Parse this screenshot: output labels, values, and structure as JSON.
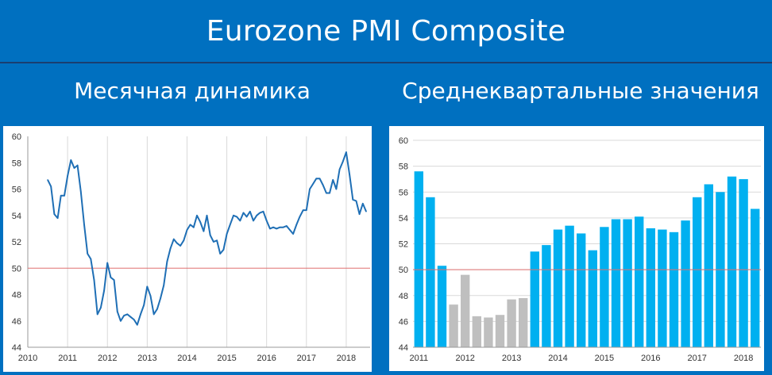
{
  "header": {
    "title": "Eurozone PMI Composite",
    "left_subtitle": "Месячная динамика",
    "right_subtitle": "Среднеквартальные значения"
  },
  "colors": {
    "background": "#0070c0",
    "line": "#1f6fb5",
    "bar_blue": "#00b0f0",
    "bar_gray": "#bfbfbf",
    "reference_line": "#e07070",
    "grid": "#d9d9d9"
  },
  "chart_data": [
    {
      "type": "line",
      "title": "Месячная динамика",
      "xlabel": "",
      "ylabel": "",
      "xlim": [
        2010,
        2018.6
      ],
      "ylim": [
        44,
        60
      ],
      "y_ticks": [
        44,
        46,
        48,
        50,
        52,
        54,
        56,
        58,
        60
      ],
      "x_ticks": [
        "2010",
        "2011",
        "2012",
        "2013",
        "2014",
        "2015",
        "2016",
        "2017",
        "2018"
      ],
      "vertical_grid": true,
      "reference_line": 50,
      "series": [
        {
          "x": [
            2010.5,
            2010.583,
            2010.667,
            2010.75,
            2010.833,
            2010.917,
            2011.0,
            2011.083,
            2011.167,
            2011.25,
            2011.333,
            2011.417,
            2011.5,
            2011.583,
            2011.667,
            2011.75,
            2011.833,
            2011.917,
            2012.0,
            2012.083,
            2012.167,
            2012.25,
            2012.333,
            2012.417,
            2012.5,
            2012.583,
            2012.667,
            2012.75,
            2012.833,
            2012.917,
            2013.0,
            2013.083,
            2013.167,
            2013.25,
            2013.333,
            2013.417,
            2013.5,
            2013.583,
            2013.667,
            2013.75,
            2013.833,
            2013.917,
            2014.0,
            2014.083,
            2014.167,
            2014.25,
            2014.333,
            2014.417,
            2014.5,
            2014.583,
            2014.667,
            2014.75,
            2014.833,
            2014.917,
            2015.0,
            2015.083,
            2015.167,
            2015.25,
            2015.333,
            2015.417,
            2015.5,
            2015.583,
            2015.667,
            2015.75,
            2015.833,
            2015.917,
            2016.0,
            2016.083,
            2016.167,
            2016.25,
            2016.333,
            2016.417,
            2016.5,
            2016.583,
            2016.667,
            2016.75,
            2016.833,
            2016.917,
            2017.0,
            2017.083,
            2017.167,
            2017.25,
            2017.333,
            2017.417,
            2017.5,
            2017.583,
            2017.667,
            2017.75,
            2017.833,
            2017.917,
            2018.0,
            2018.083,
            2018.167,
            2018.25,
            2018.333,
            2018.417,
            2018.5
          ],
          "values": [
            56.7,
            56.2,
            54.1,
            53.8,
            55.5,
            55.5,
            57.0,
            58.2,
            57.6,
            57.8,
            55.8,
            53.3,
            51.1,
            50.7,
            49.1,
            46.5,
            47.0,
            48.3,
            50.4,
            49.3,
            49.1,
            46.7,
            46.0,
            46.4,
            46.5,
            46.3,
            46.1,
            45.7,
            46.5,
            47.2,
            48.6,
            47.9,
            46.5,
            46.9,
            47.7,
            48.7,
            50.5,
            51.5,
            52.2,
            51.9,
            51.7,
            52.1,
            52.9,
            53.3,
            53.1,
            54.0,
            53.5,
            52.8,
            54.0,
            52.5,
            52.0,
            52.1,
            51.1,
            51.4,
            52.6,
            53.3,
            54.0,
            53.9,
            53.6,
            54.2,
            53.9,
            54.3,
            53.6,
            54.0,
            54.2,
            54.3,
            53.6,
            53.0,
            53.1,
            53.0,
            53.1,
            53.1,
            53.2,
            52.9,
            52.6,
            53.3,
            53.9,
            54.4,
            54.4,
            56.0,
            56.4,
            56.8,
            56.8,
            56.3,
            55.7,
            55.7,
            56.7,
            56.0,
            57.5,
            58.1,
            58.8,
            57.1,
            55.2,
            55.1,
            54.1,
            54.9,
            54.3
          ]
        }
      ]
    },
    {
      "type": "bar",
      "title": "Среднеквартальные значения",
      "xlabel": "",
      "ylabel": "",
      "ylim": [
        44,
        60
      ],
      "y_ticks": [
        44,
        46,
        48,
        50,
        52,
        54,
        56,
        58,
        60
      ],
      "x_ticks": [
        "2011",
        "2012",
        "2013",
        "2014",
        "2015",
        "2016",
        "2017",
        "2018"
      ],
      "reference_line": 50,
      "categories": [
        "2011 Q1",
        "2011 Q2",
        "2011 Q3",
        "2011 Q4",
        "2012 Q1",
        "2012 Q2",
        "2012 Q3",
        "2012 Q4",
        "2013 Q1",
        "2013 Q2",
        "2013 Q3",
        "2013 Q4",
        "2014 Q1",
        "2014 Q2",
        "2014 Q3",
        "2014 Q4",
        "2015 Q1",
        "2015 Q2",
        "2015 Q3",
        "2015 Q4",
        "2016 Q1",
        "2016 Q2",
        "2016 Q3",
        "2016 Q4",
        "2017 Q1",
        "2017 Q2",
        "2017 Q3",
        "2017 Q4",
        "2018 Q1",
        "2018 Q2"
      ],
      "values": [
        57.6,
        55.6,
        50.3,
        47.3,
        49.6,
        46.4,
        46.3,
        46.5,
        47.7,
        47.8,
        51.4,
        51.9,
        53.1,
        53.4,
        52.8,
        51.5,
        53.3,
        53.9,
        53.9,
        54.1,
        53.2,
        53.1,
        52.9,
        53.8,
        55.6,
        56.6,
        56.0,
        57.2,
        57.0,
        54.7
      ],
      "bar_colors": [
        "blue",
        "blue",
        "blue",
        "gray",
        "gray",
        "gray",
        "gray",
        "gray",
        "gray",
        "gray",
        "blue",
        "blue",
        "blue",
        "blue",
        "blue",
        "blue",
        "blue",
        "blue",
        "blue",
        "blue",
        "blue",
        "blue",
        "blue",
        "blue",
        "blue",
        "blue",
        "blue",
        "blue",
        "blue",
        "blue"
      ]
    }
  ]
}
